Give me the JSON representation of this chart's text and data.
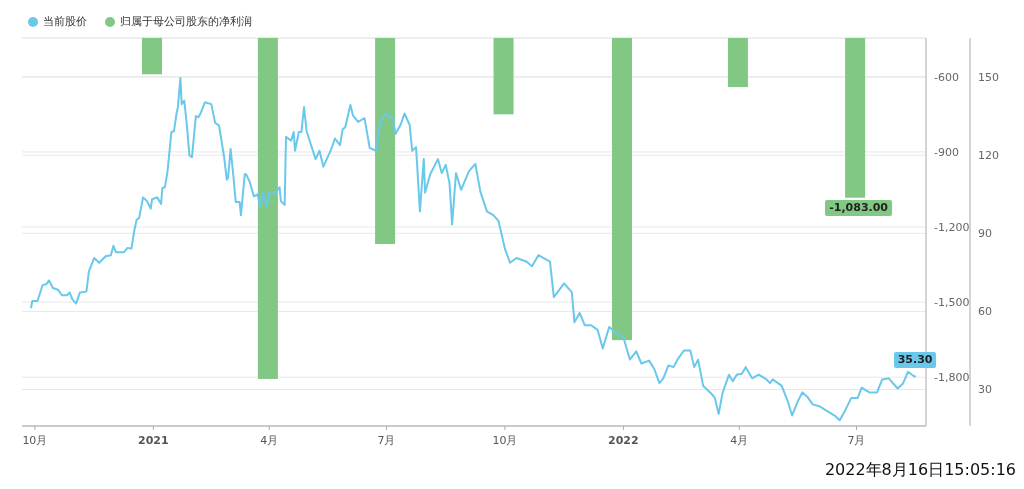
{
  "chart_data": {
    "type": "line",
    "series": [
      {
        "name": "当前股价",
        "color": "#6ac8ea",
        "axis": "y2",
        "x": [
          "2020-09-28",
          "2020-09-29",
          "2020-10-03",
          "2020-10-07",
          "2020-10-10",
          "2020-10-12",
          "2020-10-15",
          "2020-10-19",
          "2020-10-22",
          "2020-10-26",
          "2020-10-28",
          "2020-10-30",
          "2020-11-02",
          "2020-11-05",
          "2020-11-10",
          "2020-11-12",
          "2020-11-16",
          "2020-11-20",
          "2020-11-25",
          "2020-11-29",
          "2020-12-01",
          "2020-12-03",
          "2020-12-09",
          "2020-12-12",
          "2020-12-15",
          "2020-12-17",
          "2020-12-19",
          "2020-12-21",
          "2020-12-24",
          "2020-12-27",
          "2020-12-30",
          "2020-12-31",
          "2021-01-04",
          "2021-01-07",
          "2021-01-08",
          "2021-01-10",
          "2021-01-12",
          "2021-01-15",
          "2021-01-17",
          "2021-01-19",
          "2021-01-20",
          "2021-01-22",
          "2021-01-23",
          "2021-01-25",
          "2021-01-27",
          "2021-01-29",
          "2021-01-31",
          "2021-02-03",
          "2021-02-05",
          "2021-02-07",
          "2021-02-10",
          "2021-02-15",
          "2021-02-18",
          "2021-02-21",
          "2021-02-25",
          "2021-02-27",
          "2021-02-28",
          "2021-03-02",
          "2021-03-04",
          "2021-03-06",
          "2021-03-09",
          "2021-03-10",
          "2021-03-13",
          "2021-03-14",
          "2021-03-17",
          "2021-03-20",
          "2021-03-23",
          "2021-03-25",
          "2021-03-27",
          "2021-03-30",
          "2021-04-01",
          "2021-04-06",
          "2021-04-09",
          "2021-04-10",
          "2021-04-13",
          "2021-04-14",
          "2021-04-18",
          "2021-04-20",
          "2021-04-21",
          "2021-04-24",
          "2021-04-26",
          "2021-04-28",
          "2021-04-30",
          "2021-05-07",
          "2021-05-10",
          "2021-05-13",
          "2021-05-17",
          "2021-05-19",
          "2021-05-22",
          "2021-05-26",
          "2021-05-28",
          "2021-05-30",
          "2021-06-03",
          "2021-06-05",
          "2021-06-09",
          "2021-06-14",
          "2021-06-18",
          "2021-06-23",
          "2021-06-26",
          "2021-06-30",
          "2021-07-06",
          "2021-07-08",
          "2021-07-12",
          "2021-07-15",
          "2021-07-19",
          "2021-07-21",
          "2021-07-24",
          "2021-07-27",
          "2021-07-30",
          "2021-07-31",
          "2021-08-04",
          "2021-08-10",
          "2021-08-13",
          "2021-08-16",
          "2021-08-19",
          "2021-08-21",
          "2021-08-24",
          "2021-08-28",
          "2021-09-03",
          "2021-09-08",
          "2021-09-12",
          "2021-09-17",
          "2021-09-22",
          "2021-09-26",
          "2021-10-01",
          "2021-10-05",
          "2021-10-10",
          "2021-10-18",
          "2021-10-22",
          "2021-10-27",
          "2021-11-05",
          "2021-11-08",
          "2021-11-16",
          "2021-11-22",
          "2021-11-24",
          "2021-11-28",
          "2021-12-02",
          "2021-12-07",
          "2021-12-12",
          "2021-12-16",
          "2021-12-21",
          "2021-12-26",
          "2022-01-01",
          "2022-01-06",
          "2022-01-11",
          "2022-01-15",
          "2022-01-21",
          "2022-01-25",
          "2022-01-29",
          "2022-02-01",
          "2022-02-05",
          "2022-02-09",
          "2022-02-12",
          "2022-02-17",
          "2022-02-22",
          "2022-02-25",
          "2022-02-28",
          "2022-03-04",
          "2022-03-10",
          "2022-03-13",
          "2022-03-16",
          "2022-03-19",
          "2022-03-24",
          "2022-03-27",
          "2022-03-30",
          "2022-04-03",
          "2022-04-06",
          "2022-04-11",
          "2022-04-16",
          "2022-04-21",
          "2022-04-25",
          "2022-04-27",
          "2022-05-04",
          "2022-05-09",
          "2022-05-12",
          "2022-05-16",
          "2022-05-20",
          "2022-05-24",
          "2022-05-28",
          "2022-06-02",
          "2022-06-08",
          "2022-06-14",
          "2022-06-18",
          "2022-06-22",
          "2022-06-27",
          "2022-07-02",
          "2022-07-05",
          "2022-07-11",
          "2022-07-17",
          "2022-07-21",
          "2022-07-26",
          "2022-08-02",
          "2022-08-06",
          "2022-08-10",
          "2022-08-15",
          "2022-08-16"
        ],
        "values": [
          61.2,
          64.0,
          64.0,
          70.1,
          70.5,
          71.9,
          69.0,
          68.3,
          66.2,
          66.2,
          67.3,
          64.7,
          63.0,
          67.3,
          67.6,
          75.5,
          80.5,
          78.7,
          81.2,
          81.6,
          85.2,
          82.7,
          82.7,
          84.4,
          84.1,
          90.5,
          95.2,
          95.9,
          103.8,
          102.4,
          99.5,
          103.1,
          103.8,
          101.3,
          107.4,
          107.7,
          113.8,
          128.9,
          129.2,
          136.0,
          138.2,
          149.6,
          139.6,
          141.0,
          131.7,
          119.9,
          119.2,
          135.0,
          134.6,
          136.4,
          140.3,
          139.6,
          132.4,
          131.4,
          119.2,
          110.6,
          111.3,
          122.4,
          112.7,
          102.0,
          102.0,
          97.0,
          112.7,
          112.7,
          109.5,
          104.2,
          104.9,
          100.2,
          105.6,
          100.2,
          105.6,
          105.6,
          107.7,
          102.4,
          100.9,
          127.1,
          125.6,
          128.9,
          121.7,
          128.9,
          128.9,
          138.5,
          129.2,
          118.5,
          121.7,
          115.6,
          119.9,
          122.1,
          126.4,
          123.9,
          129.9,
          130.7,
          139.3,
          135.3,
          132.8,
          134.2,
          122.8,
          121.7,
          132.4,
          136.0,
          134.2,
          128.1,
          131.7,
          136.0,
          131.7,
          121.7,
          123.1,
          98.4,
          118.5,
          105.6,
          112.7,
          118.5,
          113.1,
          116.3,
          109.2,
          93.4,
          113.1,
          106.7,
          113.8,
          116.7,
          105.9,
          98.4,
          97.0,
          94.8,
          84.1,
          78.7,
          80.5,
          79.1,
          77.3,
          81.6,
          79.1,
          65.5,
          70.8,
          67.3,
          55.8,
          59.4,
          54.7,
          54.7,
          52.9,
          45.8,
          54.0,
          51.9,
          50.1,
          41.5,
          44.7,
          40.0,
          41.1,
          37.9,
          32.5,
          34.3,
          39.3,
          38.6,
          41.5,
          45.0,
          45.0,
          38.6,
          41.5,
          31.4,
          28.6,
          26.8,
          20.7,
          28.6,
          35.7,
          33.2,
          35.7,
          36.1,
          38.6,
          34.3,
          35.7,
          34.3,
          32.5,
          33.9,
          31.4,
          25.0,
          20.0,
          25.0,
          28.9,
          27.1,
          24.3,
          23.6,
          21.8,
          20.0,
          18.2,
          21.8,
          26.8,
          26.8,
          30.7,
          28.9,
          28.9,
          33.9,
          34.3,
          30.4,
          32.2,
          36.8,
          35.0,
          35.3
        ],
        "value_labels": [
          null,
          null,
          null,
          null,
          null,
          null,
          null,
          null,
          null,
          null,
          null,
          null,
          null,
          null,
          null,
          null,
          null,
          null,
          null,
          null,
          null,
          null,
          null,
          null,
          null,
          null,
          null,
          null,
          null,
          null,
          null,
          null,
          null,
          null,
          null,
          null,
          null,
          null,
          null,
          null,
          null,
          null,
          null,
          null,
          null,
          null,
          null,
          null,
          null,
          null,
          null,
          null,
          null,
          null,
          null,
          null,
          null,
          null,
          null,
          null,
          null,
          null,
          null,
          null,
          null,
          null,
          null,
          null,
          null,
          null,
          null,
          null,
          null,
          null,
          null,
          null,
          null,
          null,
          null,
          null,
          null,
          null,
          null,
          null,
          null,
          null,
          null,
          null,
          null,
          null,
          null,
          null,
          null,
          null,
          null,
          null,
          null,
          null,
          null,
          null,
          null,
          null,
          null,
          null,
          null,
          null,
          null,
          null,
          null,
          null,
          null,
          null,
          null,
          null,
          null,
          null,
          null,
          null,
          null,
          null,
          null,
          null,
          null,
          null,
          null,
          null,
          null,
          null,
          null,
          null,
          null,
          null,
          null,
          null,
          null,
          null,
          null,
          null,
          null,
          null,
          null,
          null,
          null,
          null,
          null,
          null,
          null,
          null,
          null,
          null,
          null,
          null,
          null,
          null,
          null,
          null,
          null,
          null,
          null,
          null,
          null,
          null,
          null,
          null,
          null,
          null,
          null,
          null,
          null,
          null,
          null,
          null,
          null,
          null,
          null,
          null,
          null,
          null,
          null,
          null,
          null,
          null,
          null,
          null,
          null,
          null,
          null,
          null,
          null,
          null,
          null,
          null,
          null,
          null,
          null,
          "35.30"
        ]
      },
      {
        "name": "归属于母公司股东的净利润",
        "type": "bar",
        "color": "#80c883",
        "axis": "y",
        "x": [
          "2020-12-31",
          "2021-03-31",
          "2021-06-30",
          "2021-09-30",
          "2021-12-31",
          "2022-03-31",
          "2022-06-30"
        ],
        "values": [
          -590,
          -1807,
          -1268,
          -750,
          -1652,
          -641,
          -1083
        ],
        "value_labels": [
          null,
          null,
          null,
          null,
          null,
          null,
          "-1,083.00"
        ]
      }
    ],
    "xlim": [
      "2020-09-21",
      "2022-08-24"
    ],
    "xticks": [
      {
        "value": "2020-10-01",
        "label": "10月"
      },
      {
        "value": "2021-01-01",
        "label": "2021"
      },
      {
        "value": "2021-04-01",
        "label": "4月"
      },
      {
        "value": "2021-07-01",
        "label": "7月"
      },
      {
        "value": "2021-10-01",
        "label": "10月"
      },
      {
        "value": "2022-01-01",
        "label": "2022"
      },
      {
        "value": "2022-04-01",
        "label": "4月"
      },
      {
        "value": "2022-07-01",
        "label": "7月"
      }
    ],
    "ylim": [
      -1995,
      -445
    ],
    "yticks": [
      {
        "value": -600,
        "label": "-600"
      },
      {
        "value": -900,
        "label": "-900"
      },
      {
        "value": -1200,
        "label": "-1,200"
      },
      {
        "value": -1500,
        "label": "-1,500"
      },
      {
        "value": -1800,
        "label": "-1,800"
      }
    ],
    "y2lim": [
      16,
      165
    ],
    "y2ticks": [
      30,
      60,
      90,
      120,
      150
    ],
    "grid": "y",
    "legend": "top left",
    "marker": "none",
    "annotations": [
      "2022年8月16日15:05:16"
    ]
  }
}
